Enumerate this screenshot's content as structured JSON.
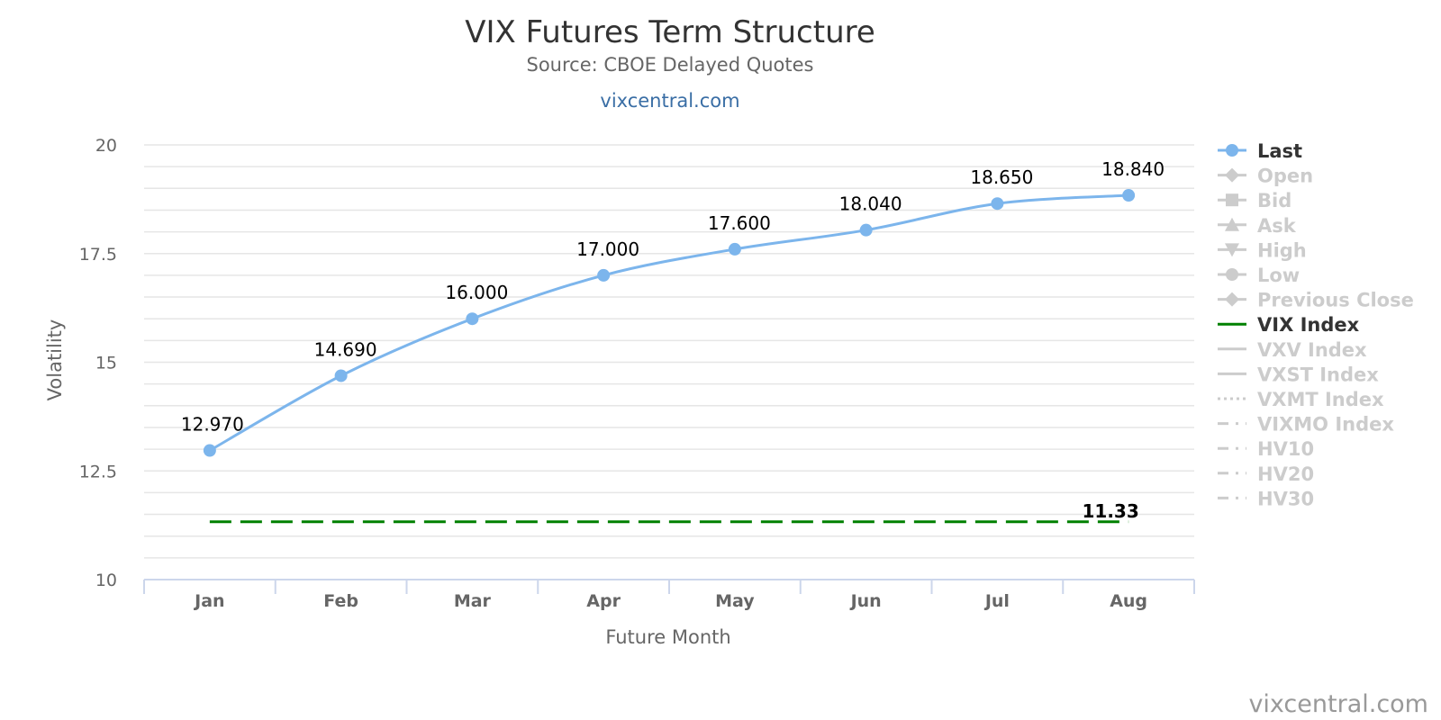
{
  "chart_data": {
    "type": "line",
    "title": "VIX Futures Term Structure",
    "subtitle": "Source: CBOE Delayed Quotes",
    "subtitle_link": "vixcentral.com",
    "credit": "vixcentral.com",
    "xlabel": "Future Month",
    "ylabel": "Volatility",
    "ylim": [
      10,
      20
    ],
    "yticks": [
      "10",
      "12.5",
      "15",
      "17.5",
      "20"
    ],
    "grid": true,
    "legend_placement": "right",
    "categories": [
      "Jan",
      "Feb",
      "Mar",
      "Apr",
      "May",
      "Jun",
      "Jul",
      "Aug"
    ],
    "series": [
      {
        "name": "Last",
        "values": [
          12.97,
          14.69,
          16.0,
          17.0,
          17.6,
          18.04,
          18.65,
          18.84
        ],
        "labels": [
          "12.970",
          "14.690",
          "16.000",
          "17.000",
          "17.600",
          "18.040",
          "18.650",
          "18.840"
        ],
        "color": "#7cb5ec"
      },
      {
        "name": "VIX Index",
        "value": 11.33,
        "label": "11.33",
        "color": "#008000",
        "style": "dashed"
      }
    ],
    "legend": [
      {
        "name": "Last",
        "symbol": "circle",
        "active": true,
        "color": "#7cb5ec"
      },
      {
        "name": "Open",
        "symbol": "diamond",
        "active": false
      },
      {
        "name": "Bid",
        "symbol": "square",
        "active": false
      },
      {
        "name": "Ask",
        "symbol": "triangle",
        "active": false
      },
      {
        "name": "High",
        "symbol": "triangle-down",
        "active": false
      },
      {
        "name": "Low",
        "symbol": "circle",
        "active": false
      },
      {
        "name": "Previous Close",
        "symbol": "diamond",
        "active": false
      },
      {
        "name": "VIX Index",
        "symbol": "line",
        "active": true,
        "color": "#008000"
      },
      {
        "name": "VXV Index",
        "symbol": "line",
        "active": false
      },
      {
        "name": "VXST Index",
        "symbol": "line",
        "active": false
      },
      {
        "name": "VXMT Index",
        "symbol": "dotted",
        "active": false
      },
      {
        "name": "VIXMO Index",
        "symbol": "dashdot",
        "active": false
      },
      {
        "name": "HV10",
        "symbol": "dashdot",
        "active": false
      },
      {
        "name": "HV20",
        "symbol": "dashdot",
        "active": false
      },
      {
        "name": "HV30",
        "symbol": "dashdot",
        "active": false
      }
    ]
  }
}
